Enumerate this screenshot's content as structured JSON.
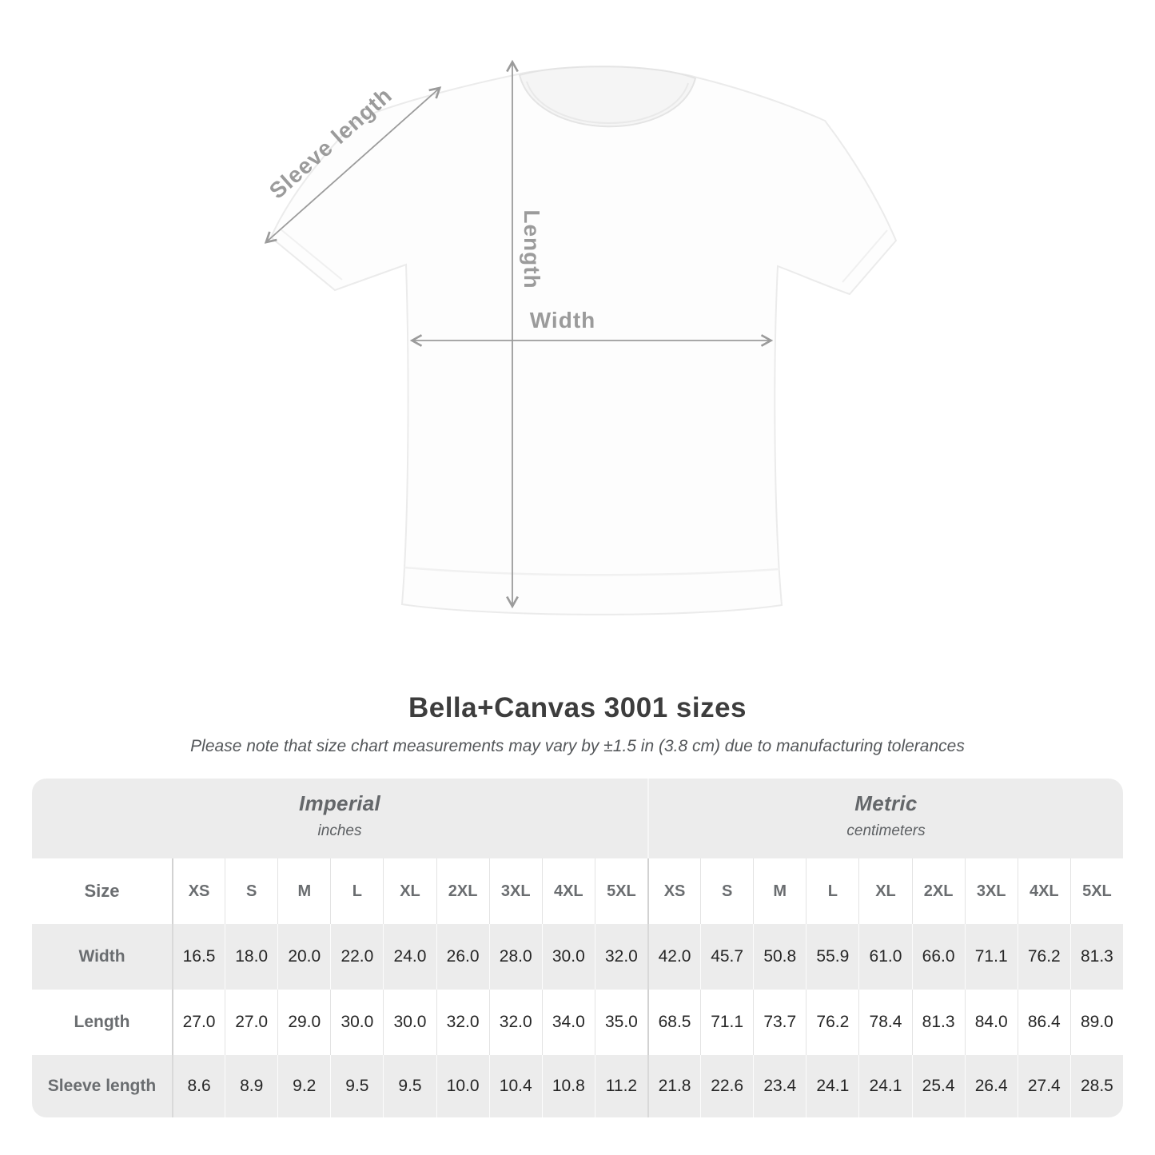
{
  "diagram": {
    "sleeve_label": "Sleeve length",
    "length_label": "Length",
    "width_label": "Width"
  },
  "header": {
    "title": "Bella+Canvas 3001 sizes",
    "note": "Please note that size chart measurements may vary by ±1.5 in (3.8 cm) due to manufacturing tolerances"
  },
  "table": {
    "size_header": "Size",
    "groups": [
      {
        "label": "Imperial",
        "unit": "inches"
      },
      {
        "label": "Metric",
        "unit": "centimeters"
      }
    ],
    "sizes": [
      "XS",
      "S",
      "M",
      "L",
      "XL",
      "2XL",
      "3XL",
      "4XL",
      "5XL"
    ],
    "rows": [
      {
        "label": "Width",
        "imperial": [
          "16.5",
          "18.0",
          "20.0",
          "22.0",
          "24.0",
          "26.0",
          "28.0",
          "30.0",
          "32.0"
        ],
        "metric": [
          "42.0",
          "45.7",
          "50.8",
          "55.9",
          "61.0",
          "66.0",
          "71.1",
          "76.2",
          "81.3"
        ]
      },
      {
        "label": "Length",
        "imperial": [
          "27.0",
          "27.0",
          "29.0",
          "30.0",
          "30.0",
          "32.0",
          "32.0",
          "34.0",
          "35.0"
        ],
        "metric": [
          "68.5",
          "71.1",
          "73.7",
          "76.2",
          "78.4",
          "81.3",
          "84.0",
          "86.4",
          "89.0"
        ]
      },
      {
        "label": "Sleeve length",
        "imperial": [
          "8.6",
          "8.9",
          "9.2",
          "9.5",
          "9.5",
          "10.0",
          "10.4",
          "10.8",
          "11.2"
        ],
        "metric": [
          "21.8",
          "22.6",
          "23.4",
          "24.1",
          "24.1",
          "25.4",
          "26.4",
          "27.4",
          "28.5"
        ]
      }
    ]
  },
  "chart_data": {
    "type": "table",
    "title": "Bella+Canvas 3001 sizes",
    "note": "Please note that size chart measurements may vary by ±1.5 in (3.8 cm) due to manufacturing tolerances",
    "column_groups": [
      {
        "label": "Imperial",
        "unit": "inches",
        "columns": [
          "XS",
          "S",
          "M",
          "L",
          "XL",
          "2XL",
          "3XL",
          "4XL",
          "5XL"
        ]
      },
      {
        "label": "Metric",
        "unit": "centimeters",
        "columns": [
          "XS",
          "S",
          "M",
          "L",
          "XL",
          "2XL",
          "3XL",
          "4XL",
          "5XL"
        ]
      }
    ],
    "rows": [
      {
        "label": "Width",
        "imperial_inches": [
          16.5,
          18.0,
          20.0,
          22.0,
          24.0,
          26.0,
          28.0,
          30.0,
          32.0
        ],
        "metric_centimeters": [
          42.0,
          45.7,
          50.8,
          55.9,
          61.0,
          66.0,
          71.1,
          76.2,
          81.3
        ]
      },
      {
        "label": "Length",
        "imperial_inches": [
          27.0,
          27.0,
          29.0,
          30.0,
          30.0,
          32.0,
          32.0,
          34.0,
          35.0
        ],
        "metric_centimeters": [
          68.5,
          71.1,
          73.7,
          76.2,
          78.4,
          81.3,
          84.0,
          86.4,
          89.0
        ]
      },
      {
        "label": "Sleeve length",
        "imperial_inches": [
          8.6,
          8.9,
          9.2,
          9.5,
          9.5,
          10.0,
          10.4,
          10.8,
          11.2
        ],
        "metric_centimeters": [
          21.8,
          22.6,
          23.4,
          24.1,
          24.1,
          25.4,
          26.4,
          27.4,
          28.5
        ]
      }
    ]
  },
  "colors": {
    "row_alt_bg": "#ececec",
    "group_header_bg": "#ececec",
    "label_text": "#6a6d70",
    "value_text": "#262626",
    "title_text": "#3d3d3d",
    "note_text": "#54575a",
    "measure_gray": "#9b9b9b"
  }
}
